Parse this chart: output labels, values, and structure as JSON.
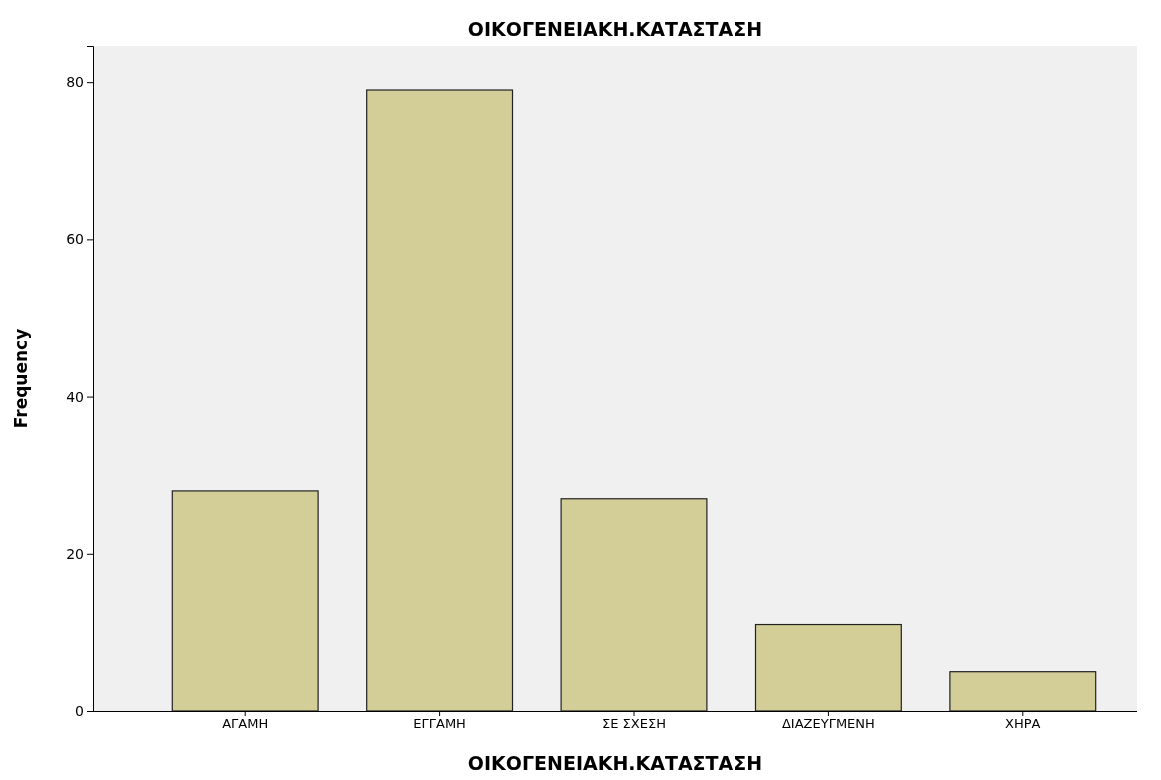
{
  "chart_data": {
    "type": "bar",
    "title": "ΟΙΚΟΓΕΝΕΙΑΚΗ.ΚΑΤΑΣΤΑΣΗ",
    "xlabel": "ΟΙΚΟΓΕΝΕΙΑΚΗ.ΚΑΤΑΣΤΑΣΗ",
    "ylabel": "Frequency",
    "categories": [
      "ΑΓΑΜΗ",
      "ΕΓΓΑΜΗ",
      "ΣΕ ΣΧΕΣΗ",
      "ΔΙΑΖΕΥΓΜΕΝΗ",
      "ΧΗΡΑ"
    ],
    "values": [
      28,
      79,
      27,
      11,
      5
    ],
    "color": "#d3ce97",
    "ylim": [
      0,
      84.6
    ],
    "yticks": [
      0,
      20,
      40,
      60,
      80
    ],
    "grid": false
  }
}
